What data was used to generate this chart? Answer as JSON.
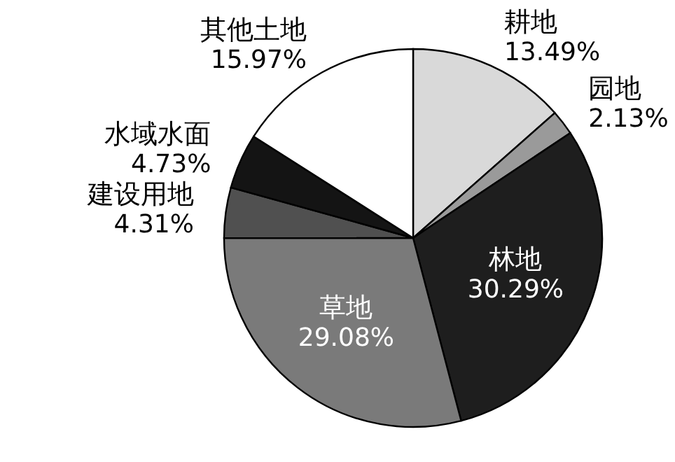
{
  "chart_data": {
    "type": "pie",
    "categories": [
      "耕地",
      "园地",
      "林地",
      "草地",
      "建设用地",
      "水域水面",
      "其他土地"
    ],
    "values": [
      13.49,
      2.13,
      30.29,
      29.08,
      4.31,
      4.73,
      15.97
    ],
    "colors": [
      "#d9d9d9",
      "#9a9a9a",
      "#1e1e1e",
      "#7a7a7a",
      "#505050",
      "#141414",
      "#ffffff"
    ],
    "value_labels": [
      "13.49%",
      "2.13%",
      "30.29%",
      "29.08%",
      "4.31%",
      "4.73%",
      "15.97%"
    ],
    "legend": false
  }
}
